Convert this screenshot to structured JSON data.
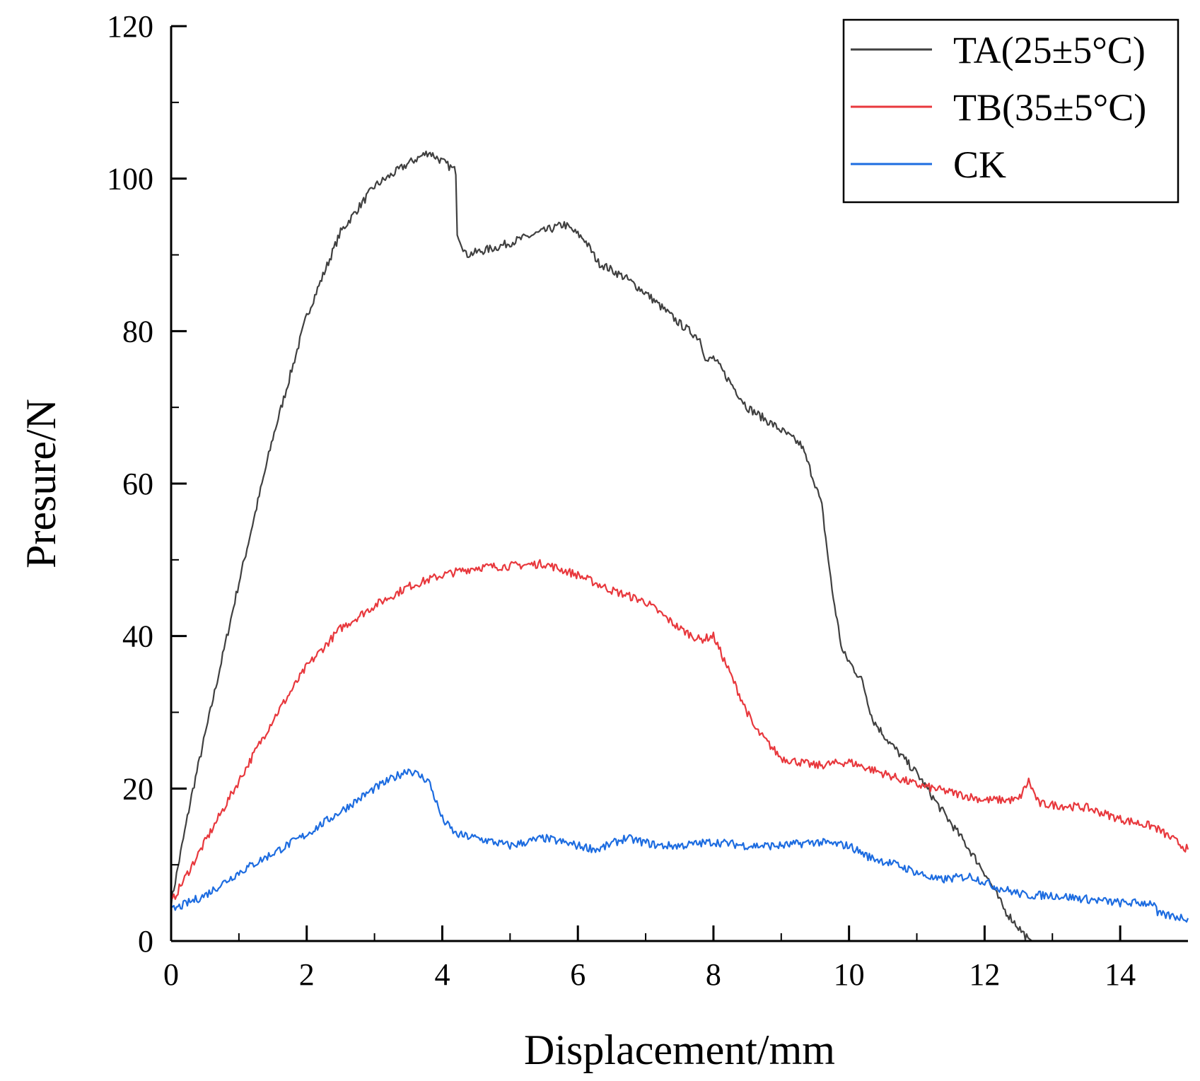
{
  "chart_data": {
    "type": "line",
    "xlabel": "Displacement/mm",
    "ylabel": "Presure/N",
    "xlim": [
      0,
      15
    ],
    "ylim": [
      0,
      120
    ],
    "xticks": [
      "0",
      "2",
      "4",
      "6",
      "8",
      "10",
      "12",
      "14"
    ],
    "yticks": [
      "0",
      "20",
      "40",
      "60",
      "80",
      "100",
      "120"
    ],
    "grid": false,
    "legend_position": "top-right",
    "series": [
      {
        "name": "TA(25±5°C)",
        "color": "#404040",
        "points": [
          [
            0,
            5
          ],
          [
            0.3,
            19
          ],
          [
            0.6,
            31
          ],
          [
            1.0,
            47
          ],
          [
            1.5,
            66
          ],
          [
            2.0,
            82
          ],
          [
            2.5,
            93
          ],
          [
            3.0,
            99
          ],
          [
            3.5,
            102
          ],
          [
            3.8,
            103.5
          ],
          [
            4.2,
            101
          ],
          [
            4.22,
            93
          ],
          [
            4.35,
            90
          ],
          [
            4.8,
            91
          ],
          [
            5.3,
            92.5
          ],
          [
            5.8,
            94
          ],
          [
            6.1,
            92
          ],
          [
            6.3,
            89
          ],
          [
            6.7,
            87
          ],
          [
            7.0,
            85
          ],
          [
            7.5,
            81
          ],
          [
            7.8,
            79
          ],
          [
            7.9,
            76
          ],
          [
            8.0,
            76.5
          ],
          [
            8.5,
            70
          ],
          [
            9.0,
            67
          ],
          [
            9.3,
            65
          ],
          [
            9.5,
            60
          ],
          [
            9.6,
            57
          ],
          [
            9.75,
            46
          ],
          [
            9.9,
            38
          ],
          [
            10.2,
            34
          ],
          [
            10.35,
            29
          ],
          [
            10.6,
            26
          ],
          [
            11.0,
            22
          ],
          [
            11.3,
            18
          ],
          [
            11.7,
            13
          ],
          [
            12.0,
            9
          ],
          [
            12.3,
            4
          ],
          [
            12.6,
            0.7
          ],
          [
            12.7,
            0
          ],
          [
            15,
            0
          ]
        ]
      },
      {
        "name": "TB(35±5°C)",
        "color": "#e8383d",
        "points": [
          [
            0,
            5
          ],
          [
            0.5,
            13
          ],
          [
            1.0,
            21
          ],
          [
            1.5,
            29
          ],
          [
            2.0,
            36
          ],
          [
            2.5,
            41
          ],
          [
            3.0,
            44
          ],
          [
            3.5,
            46.5
          ],
          [
            4.0,
            48
          ],
          [
            4.5,
            49
          ],
          [
            5.0,
            49.2
          ],
          [
            5.5,
            49.5
          ],
          [
            6.0,
            48
          ],
          [
            6.5,
            46
          ],
          [
            7.0,
            44.5
          ],
          [
            7.5,
            41
          ],
          [
            7.8,
            39.5
          ],
          [
            8.0,
            40
          ],
          [
            8.3,
            34
          ],
          [
            8.6,
            28
          ],
          [
            9.0,
            24
          ],
          [
            9.5,
            23
          ],
          [
            10.0,
            23.5
          ],
          [
            10.5,
            22
          ],
          [
            11.0,
            20.5
          ],
          [
            11.5,
            19.5
          ],
          [
            12.0,
            18.5
          ],
          [
            12.5,
            18.5
          ],
          [
            12.65,
            21
          ],
          [
            12.8,
            18
          ],
          [
            13.5,
            17.5
          ],
          [
            14.0,
            16
          ],
          [
            14.5,
            15
          ],
          [
            15,
            12
          ]
        ]
      },
      {
        "name": "CK",
        "color": "#1d6ce0",
        "points": [
          [
            0,
            4
          ],
          [
            0.5,
            6
          ],
          [
            1.0,
            9
          ],
          [
            1.5,
            11.5
          ],
          [
            2.0,
            14
          ],
          [
            2.5,
            17
          ],
          [
            3.0,
            20
          ],
          [
            3.5,
            22.5
          ],
          [
            3.8,
            21
          ],
          [
            4.0,
            16
          ],
          [
            4.2,
            14
          ],
          [
            4.5,
            13.5
          ],
          [
            5.0,
            12.5
          ],
          [
            5.5,
            13.5
          ],
          [
            6.0,
            12.5
          ],
          [
            6.3,
            12
          ],
          [
            6.7,
            13.5
          ],
          [
            7.2,
            12.5
          ],
          [
            7.5,
            12.5
          ],
          [
            8.0,
            13
          ],
          [
            8.5,
            12.5
          ],
          [
            9.0,
            12.5
          ],
          [
            9.5,
            13
          ],
          [
            10.0,
            12.5
          ],
          [
            10.3,
            11
          ],
          [
            10.7,
            10
          ],
          [
            11.0,
            9
          ],
          [
            11.3,
            8
          ],
          [
            11.8,
            8.5
          ],
          [
            12.2,
            7
          ],
          [
            12.6,
            6
          ],
          [
            13.0,
            6
          ],
          [
            13.5,
            5.5
          ],
          [
            14.0,
            5
          ],
          [
            14.5,
            5
          ],
          [
            14.55,
            3.5
          ],
          [
            15,
            3
          ]
        ]
      }
    ]
  }
}
